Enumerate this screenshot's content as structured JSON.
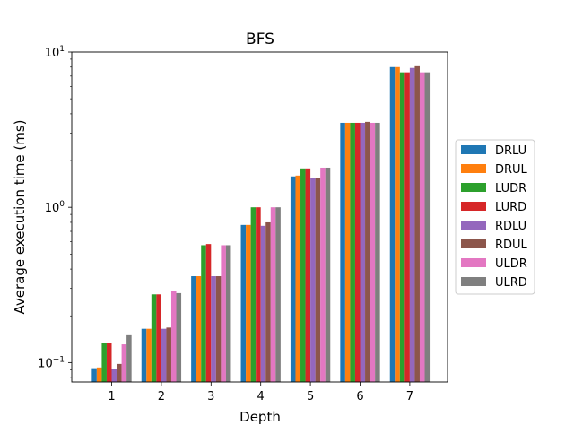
{
  "chart_data": {
    "type": "bar",
    "title": "BFS",
    "xlabel": "Depth",
    "ylabel": "Average execution time (ms)",
    "yscale": "log",
    "ylim": [
      0.075,
      10
    ],
    "yticks": [
      {
        "value": 0.1,
        "base": "10",
        "exp": "−1"
      },
      {
        "value": 1,
        "base": "10",
        "exp": "0"
      },
      {
        "value": 10,
        "base": "10",
        "exp": "1"
      }
    ],
    "categories": [
      "1",
      "2",
      "3",
      "4",
      "5",
      "6",
      "7"
    ],
    "legend_position": "center-right",
    "series": [
      {
        "name": "DRLU",
        "color": "#1f77b4",
        "values": [
          0.092,
          0.165,
          0.36,
          0.77,
          1.58,
          3.5,
          8.0
        ]
      },
      {
        "name": "DRUL",
        "color": "#ff7f0e",
        "values": [
          0.093,
          0.165,
          0.36,
          0.77,
          1.6,
          3.5,
          8.0
        ]
      },
      {
        "name": "LUDR",
        "color": "#2ca02c",
        "values": [
          0.133,
          0.275,
          0.57,
          1.0,
          1.78,
          3.5,
          7.4
        ]
      },
      {
        "name": "LURD",
        "color": "#d62728",
        "values": [
          0.133,
          0.275,
          0.58,
          1.0,
          1.78,
          3.5,
          7.4
        ]
      },
      {
        "name": "RDLU",
        "color": "#9467bd",
        "values": [
          0.091,
          0.165,
          0.36,
          0.76,
          1.55,
          3.5,
          7.9
        ]
      },
      {
        "name": "RDUL",
        "color": "#8c564b",
        "values": [
          0.098,
          0.168,
          0.36,
          0.8,
          1.55,
          3.55,
          8.1
        ]
      },
      {
        "name": "ULDR",
        "color": "#e377c2",
        "values": [
          0.131,
          0.29,
          0.57,
          1.0,
          1.8,
          3.5,
          7.4
        ]
      },
      {
        "name": "ULRD",
        "color": "#7f7f7f",
        "values": [
          0.15,
          0.28,
          0.57,
          1.0,
          1.8,
          3.5,
          7.4
        ]
      }
    ]
  }
}
